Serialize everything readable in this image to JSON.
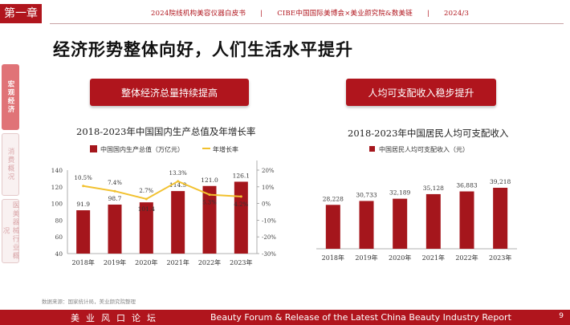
{
  "chapter": "第一章",
  "header": {
    "items": [
      "2024院线机构美容仪器白皮书",
      "CIBE中国国际美博会×美业颜究院&数美链",
      "2024/3"
    ],
    "separator": "|"
  },
  "page_title": "经济形势整体向好，人们生活水平提升",
  "side_nav": [
    {
      "label": "宏观经济",
      "active": true
    },
    {
      "label": "消费概况",
      "active": false
    },
    {
      "label": "医美器械行业概况",
      "active": false
    }
  ],
  "buttons": {
    "left": "整体经济总量持续提高",
    "right": "人均可支配收入稳步提升"
  },
  "colors": {
    "accent": "#b0151d",
    "bar": "#a5161c",
    "line": "#f2c12e"
  },
  "chart_data": [
    {
      "type": "bar",
      "title": "2018-2023年中国国内生产总值及年增长率",
      "categories": [
        "2018年",
        "2019年",
        "2020年",
        "2021年",
        "2022年",
        "2023年"
      ],
      "series": [
        {
          "name": "中国国内生产总值（万亿元）",
          "type": "bar",
          "axis": "left",
          "values": [
            91.9,
            98.7,
            101.4,
            114.9,
            121.0,
            126.1
          ]
        },
        {
          "name": "年增长率",
          "type": "line",
          "axis": "right",
          "values": [
            10.5,
            7.4,
            2.7,
            13.3,
            5.3,
            4.2
          ]
        }
      ],
      "data_labels": {
        "bars": [
          "91.9",
          "98.7",
          "101.4",
          "114.9",
          "121.0",
          "126.1"
        ],
        "line": [
          "10.5%",
          "7.4%",
          "2.7%",
          "13.3%",
          "5.3%",
          "4.2%"
        ]
      },
      "y_left": {
        "min": 40,
        "max": 140,
        "ticks": [
          "40",
          "60",
          "80",
          "100",
          "120",
          "140"
        ]
      },
      "y_right": {
        "min": -30,
        "max": 20,
        "ticks": [
          "-30%",
          "-20%",
          "-10%",
          "0%",
          "10%",
          "20%"
        ]
      },
      "legend": "top"
    },
    {
      "type": "bar",
      "title": "2018-2023年中国居民人均可支配收入",
      "categories": [
        "2018年",
        "2019年",
        "2020年",
        "2021年",
        "2022年",
        "2023年"
      ],
      "series": [
        {
          "name": "中国居民人均可支配收入（元）",
          "values": [
            28228,
            30733,
            32189,
            35128,
            36883,
            39218
          ]
        }
      ],
      "data_labels": [
        "28,228",
        "30,733",
        "32,189",
        "35,128",
        "36,883",
        "39,218"
      ],
      "legend": "top"
    }
  ],
  "source": "数据来源：国家统计局，美业颜究院整理",
  "footer": {
    "left": "美业风口论坛",
    "right": "Beauty Forum & Release of the Latest China Beauty Industry Report",
    "page": "9"
  }
}
